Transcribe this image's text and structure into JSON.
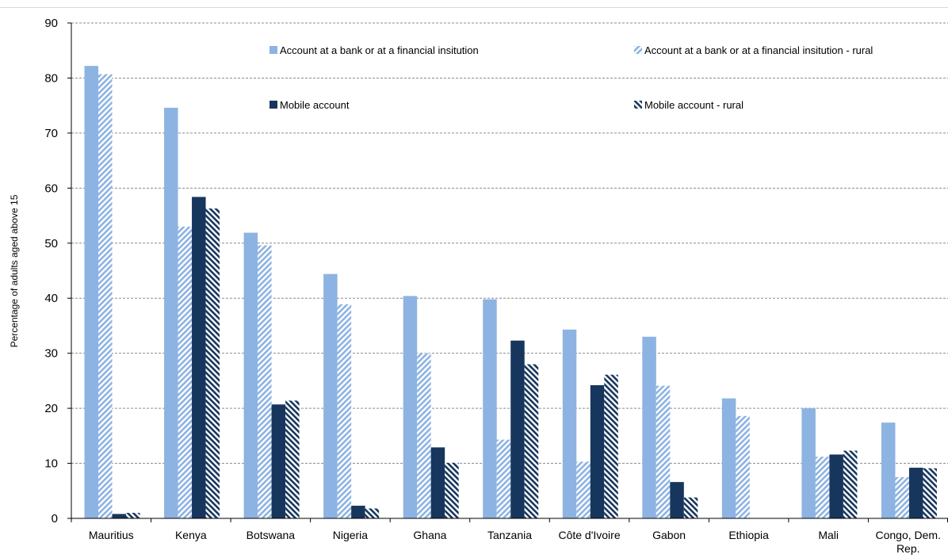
{
  "chart_data": {
    "type": "bar",
    "title": "",
    "xlabel": "",
    "ylabel": "Percentage of adults aged above 15",
    "ylim": [
      0,
      90
    ],
    "yticks": [
      0,
      10,
      20,
      30,
      40,
      50,
      60,
      70,
      80,
      90
    ],
    "grid": true,
    "legend_position": "top-right",
    "categories": [
      "Mauritius",
      "Kenya",
      "Botswana",
      "Nigeria",
      "Ghana",
      "Tanzania",
      "Côte d'Ivoire",
      "Gabon",
      "Ethiopia",
      "Mali",
      "Congo, Dem. Rep."
    ],
    "series": [
      {
        "name": "Account at a bank or at a financial insitution",
        "color": "#8db3e2",
        "pattern": "solid",
        "values": [
          82.2,
          74.6,
          51.9,
          44.4,
          40.4,
          39.8,
          34.3,
          33.0,
          21.8,
          20.0,
          17.4
        ]
      },
      {
        "name": "Account at a bank or at a financial insitution - rural",
        "color": "#8db3e2",
        "pattern": "hatch",
        "values": [
          80.7,
          53.0,
          49.6,
          38.9,
          30.0,
          14.3,
          10.3,
          24.1,
          18.6,
          11.2,
          7.5
        ]
      },
      {
        "name": "Mobile account",
        "color": "#17365d",
        "pattern": "solid",
        "values": [
          0.8,
          58.4,
          20.7,
          2.3,
          12.9,
          32.3,
          24.2,
          6.6,
          0,
          11.6,
          9.2
        ]
      },
      {
        "name": "Mobile account - rural",
        "color": "#17365d",
        "pattern": "hatch",
        "values": [
          1.0,
          56.3,
          21.4,
          1.8,
          10.1,
          28.0,
          26.1,
          3.8,
          0,
          12.3,
          9.1
        ]
      }
    ]
  }
}
